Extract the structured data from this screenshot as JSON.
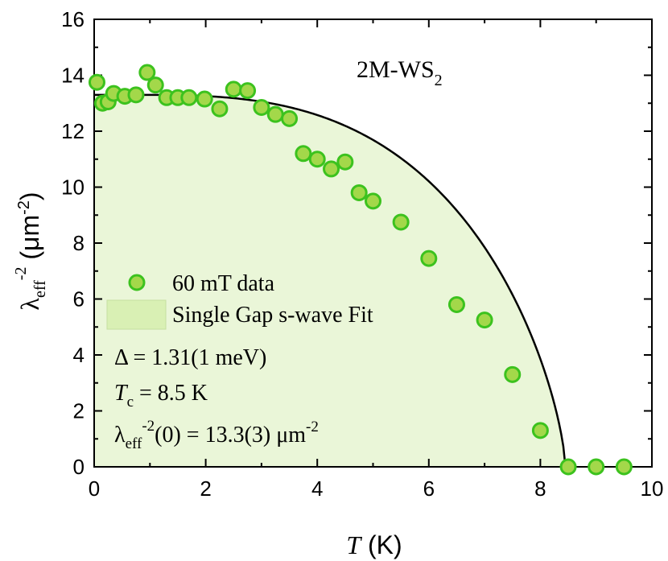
{
  "chart_data": {
    "type": "scatter",
    "xlim": [
      0,
      10
    ],
    "ylim": [
      0,
      16
    ],
    "x_ticks": [
      0,
      2,
      4,
      6,
      8,
      10
    ],
    "y_ticks": [
      0,
      2,
      4,
      6,
      8,
      10,
      12,
      14,
      16
    ],
    "xlabel": {
      "italic": "T",
      "rest": " (K)"
    },
    "ylabel": {
      "main": "λ",
      "sub": "eff",
      "sup": "-2",
      "rest": " (μm",
      "unit_sup": "-2",
      "close": ")"
    },
    "sample_label": {
      "main": "2M-WS",
      "sub": "2"
    },
    "legend": {
      "placement": "left",
      "data_entry": "60 mT data",
      "fit_entry": "Single Gap s-wave Fit"
    },
    "annotations": {
      "gap": "Δ = 1.31(1 meV)",
      "tc_italic": "T",
      "tc_sub": "c",
      "tc_rest": " = 8.5 K",
      "lambda_main": "λ",
      "lambda_sub": "eff",
      "lambda_sup": "-2",
      "lambda_rest": "(0) = 13.3(3) μm",
      "lambda_unit_sup": "-2"
    },
    "colors": {
      "marker_fill": "#a3d84a",
      "marker_edge": "#3cc21e",
      "fit_fill": "#eaf6d8",
      "fit_line": "#000000",
      "legend_patch": "#d9f0b4"
    },
    "series": [
      {
        "name": "60 mT data",
        "x": [
          0.05,
          0.15,
          0.25,
          0.35,
          0.55,
          0.75,
          0.95,
          1.1,
          1.3,
          1.5,
          1.7,
          1.98,
          2.25,
          2.5,
          2.75,
          3.0,
          3.25,
          3.5,
          3.75,
          4.0,
          4.25,
          4.5,
          4.75,
          5.0,
          5.5,
          6.0,
          6.5,
          7.0,
          7.5,
          8.0,
          8.5,
          9.0,
          9.5
        ],
        "y": [
          13.75,
          13.0,
          13.05,
          13.35,
          13.25,
          13.3,
          14.1,
          13.65,
          13.2,
          13.2,
          13.2,
          13.15,
          12.8,
          13.5,
          13.45,
          12.85,
          12.6,
          12.45,
          11.2,
          11.0,
          10.65,
          10.9,
          9.8,
          9.5,
          8.75,
          7.45,
          5.8,
          5.25,
          3.3,
          1.3,
          0.0,
          0.0,
          0.0
        ]
      }
    ],
    "fit": {
      "name": "Single Gap s-wave Fit",
      "lambda0": 13.3,
      "tc": 8.45
    }
  }
}
